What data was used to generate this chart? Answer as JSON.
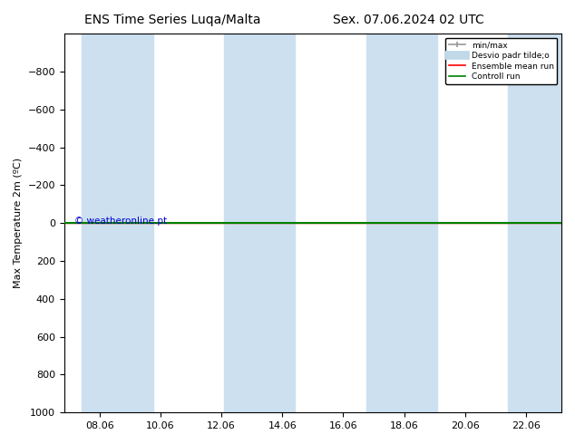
{
  "title_left": "ENS Time Series Luqa/Malta",
  "title_right": "Sex. 07.06.2024 02 UTC",
  "ylabel": "Max Temperature 2m (ºC)",
  "xtick_labels": [
    "08.06",
    "10.06",
    "12.06",
    "14.06",
    "16.06",
    "18.06",
    "20.06",
    "22.06"
  ],
  "ylim_top": -1000,
  "ylim_bottom": 1000,
  "yticks": [
    -800,
    -600,
    -400,
    -200,
    0,
    200,
    400,
    600,
    800,
    1000
  ],
  "y_line": 0,
  "shaded_bands": [
    [
      0.5,
      2.5
    ],
    [
      4.5,
      6.5
    ],
    [
      8.5,
      10.5
    ],
    [
      12.5,
      15.0
    ]
  ],
  "shaded_color": "#cce0f0",
  "line_green_y": 0,
  "line_red_y": 0,
  "legend_labels": [
    "min/max",
    "Desvio padr tilde;o",
    "Ensemble mean run",
    "Controll run"
  ],
  "legend_colors": [
    "#999999",
    "#c0d8e8",
    "red",
    "green"
  ],
  "copyright_text": "© weatheronline.pt",
  "copyright_color": "#0000cc",
  "background_color": "white",
  "plot_bg_color": "white",
  "title_fontsize": 10,
  "tick_fontsize": 8,
  "ylabel_fontsize": 8,
  "x_min": 0,
  "x_max": 14,
  "num_bands": 4
}
